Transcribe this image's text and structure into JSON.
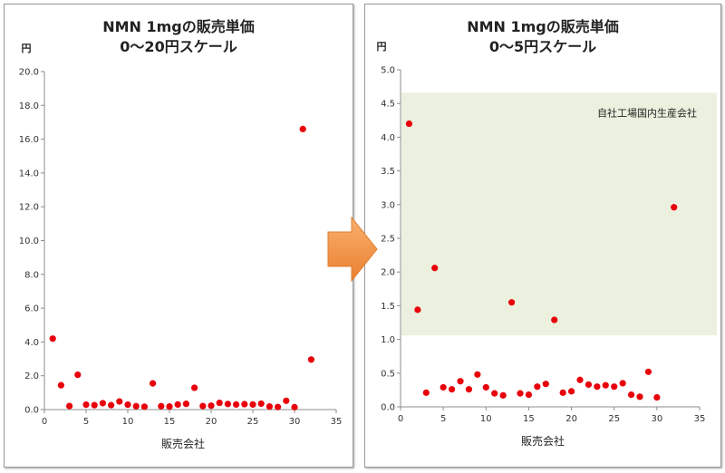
{
  "chart_data": [
    {
      "type": "scatter",
      "title": "NMN 1mgの販売単価",
      "subtitle": "0～20円スケール",
      "xlabel": "販売会社",
      "ylabel": "円",
      "xlim": [
        0,
        35
      ],
      "ylim": [
        0,
        20
      ],
      "xticks": [
        0,
        5,
        10,
        15,
        20,
        25,
        30,
        35
      ],
      "yticks": [
        0,
        2,
        4,
        6,
        8,
        10,
        12,
        14,
        16,
        18,
        20
      ],
      "xtick_labels": [
        "0",
        "5",
        "10",
        "15",
        "20",
        "25",
        "30",
        "35"
      ],
      "ytick_labels": [
        "0.0",
        "2.0",
        "4.0",
        "6.0",
        "8.0",
        "10.0",
        "12.0",
        "14.0",
        "16.0",
        "18.0",
        "20.0"
      ],
      "grid": false,
      "marker_color": "#e8000a",
      "points": [
        [
          1,
          4.2
        ],
        [
          2,
          1.44
        ],
        [
          3,
          0.21
        ],
        [
          4,
          2.06
        ],
        [
          5,
          0.29
        ],
        [
          6,
          0.26
        ],
        [
          7,
          0.38
        ],
        [
          8,
          0.26
        ],
        [
          9,
          0.48
        ],
        [
          10,
          0.29
        ],
        [
          11,
          0.2
        ],
        [
          12,
          0.17
        ],
        [
          13,
          1.55
        ],
        [
          14,
          0.2
        ],
        [
          15,
          0.18
        ],
        [
          16,
          0.3
        ],
        [
          17,
          0.34
        ],
        [
          18,
          1.29
        ],
        [
          19,
          0.21
        ],
        [
          20,
          0.23
        ],
        [
          21,
          0.4
        ],
        [
          22,
          0.33
        ],
        [
          23,
          0.3
        ],
        [
          24,
          0.32
        ],
        [
          25,
          0.3
        ],
        [
          26,
          0.35
        ],
        [
          27,
          0.18
        ],
        [
          28,
          0.15
        ],
        [
          29,
          0.52
        ],
        [
          30,
          0.14
        ],
        [
          31,
          16.6
        ],
        [
          32,
          2.96
        ]
      ]
    },
    {
      "type": "scatter",
      "title": "NMN 1mgの販売単価",
      "subtitle": "0～5円スケール",
      "xlabel": "販売会社",
      "ylabel": "円",
      "xlim": [
        0,
        35
      ],
      "ylim": [
        0,
        5
      ],
      "xticks": [
        0,
        5,
        10,
        15,
        20,
        25,
        30,
        35
      ],
      "yticks": [
        0,
        0.5,
        1,
        1.5,
        2,
        2.5,
        3,
        3.5,
        4,
        4.5,
        5
      ],
      "xtick_labels": [
        "0",
        "5",
        "10",
        "15",
        "20",
        "25",
        "30",
        "35"
      ],
      "ytick_labels": [
        "0.0",
        "0.5",
        "1.0",
        "1.5",
        "2.0",
        "2.5",
        "3.0",
        "3.5",
        "4.0",
        "4.5",
        "5.0"
      ],
      "grid": false,
      "marker_color": "#e8000a",
      "highlight": {
        "label": "自社工場国内生産会社",
        "color": "#ebf1de",
        "y_range": [
          1.06,
          4.66
        ]
      },
      "points": [
        [
          1,
          4.2
        ],
        [
          2,
          1.44
        ],
        [
          3,
          0.21
        ],
        [
          4,
          2.06
        ],
        [
          5,
          0.29
        ],
        [
          6,
          0.26
        ],
        [
          7,
          0.38
        ],
        [
          8,
          0.26
        ],
        [
          9,
          0.48
        ],
        [
          10,
          0.29
        ],
        [
          11,
          0.2
        ],
        [
          12,
          0.17
        ],
        [
          13,
          1.55
        ],
        [
          14,
          0.2
        ],
        [
          15,
          0.18
        ],
        [
          16,
          0.3
        ],
        [
          17,
          0.34
        ],
        [
          18,
          1.29
        ],
        [
          19,
          0.21
        ],
        [
          20,
          0.23
        ],
        [
          21,
          0.4
        ],
        [
          22,
          0.33
        ],
        [
          23,
          0.3
        ],
        [
          24,
          0.32
        ],
        [
          25,
          0.3
        ],
        [
          26,
          0.35
        ],
        [
          27,
          0.18
        ],
        [
          28,
          0.15
        ],
        [
          29,
          0.52
        ],
        [
          30,
          0.14
        ],
        [
          32,
          2.96
        ]
      ]
    }
  ],
  "arrow": {
    "color": "#f79646",
    "icon": "right-arrow-icon"
  }
}
